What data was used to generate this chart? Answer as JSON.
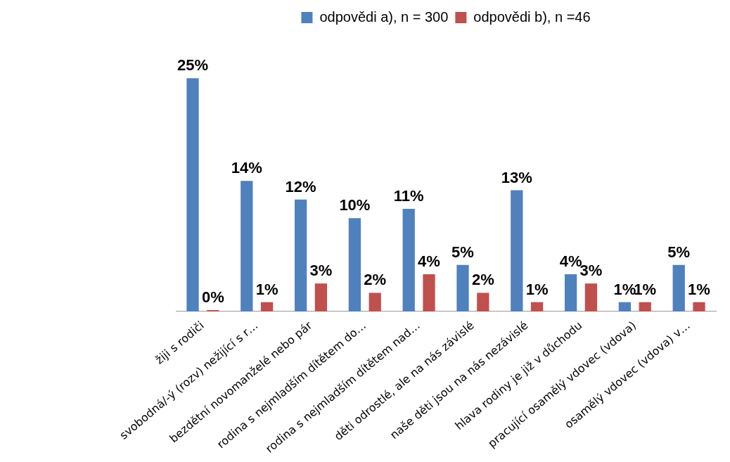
{
  "chart_data": {
    "type": "bar",
    "legend": "top",
    "grid": false,
    "categories": [
      "žiji s rodiči",
      "svobodná/-ý (rozv) nežijící s r…",
      "bezdětní novomanželé nebo pár",
      "rodina s nejmladším dítětem do…",
      "rodina s nejmladším dítětem nad…",
      "děti odrostlé, ale na nás závislé",
      "naše děti jsou na nás nezávislé",
      "hlava rodiny je již v důchodu",
      "pracující osamělý vdovec (vdova)",
      "osamělý vdovec (vdova) v…"
    ],
    "series": [
      {
        "name": "odpovědi a), n = 300",
        "color": "#4f81bd",
        "values": [
          25,
          14,
          12,
          10,
          11,
          5,
          13,
          4,
          1,
          5
        ],
        "value_labels": [
          "25%",
          "14%",
          "12%",
          "10%",
          "11%",
          "5%",
          "13%",
          "4%",
          "1%",
          "5%"
        ]
      },
      {
        "name": "odpovědi b), n =46",
        "color": "#c0504d",
        "values": [
          0,
          1,
          3,
          2,
          4,
          2,
          1,
          3,
          1,
          1
        ],
        "value_labels": [
          "0%",
          "1%",
          "3%",
          "2%",
          "4%",
          "2%",
          "1%",
          "3%",
          "1%",
          "1%"
        ]
      }
    ]
  }
}
